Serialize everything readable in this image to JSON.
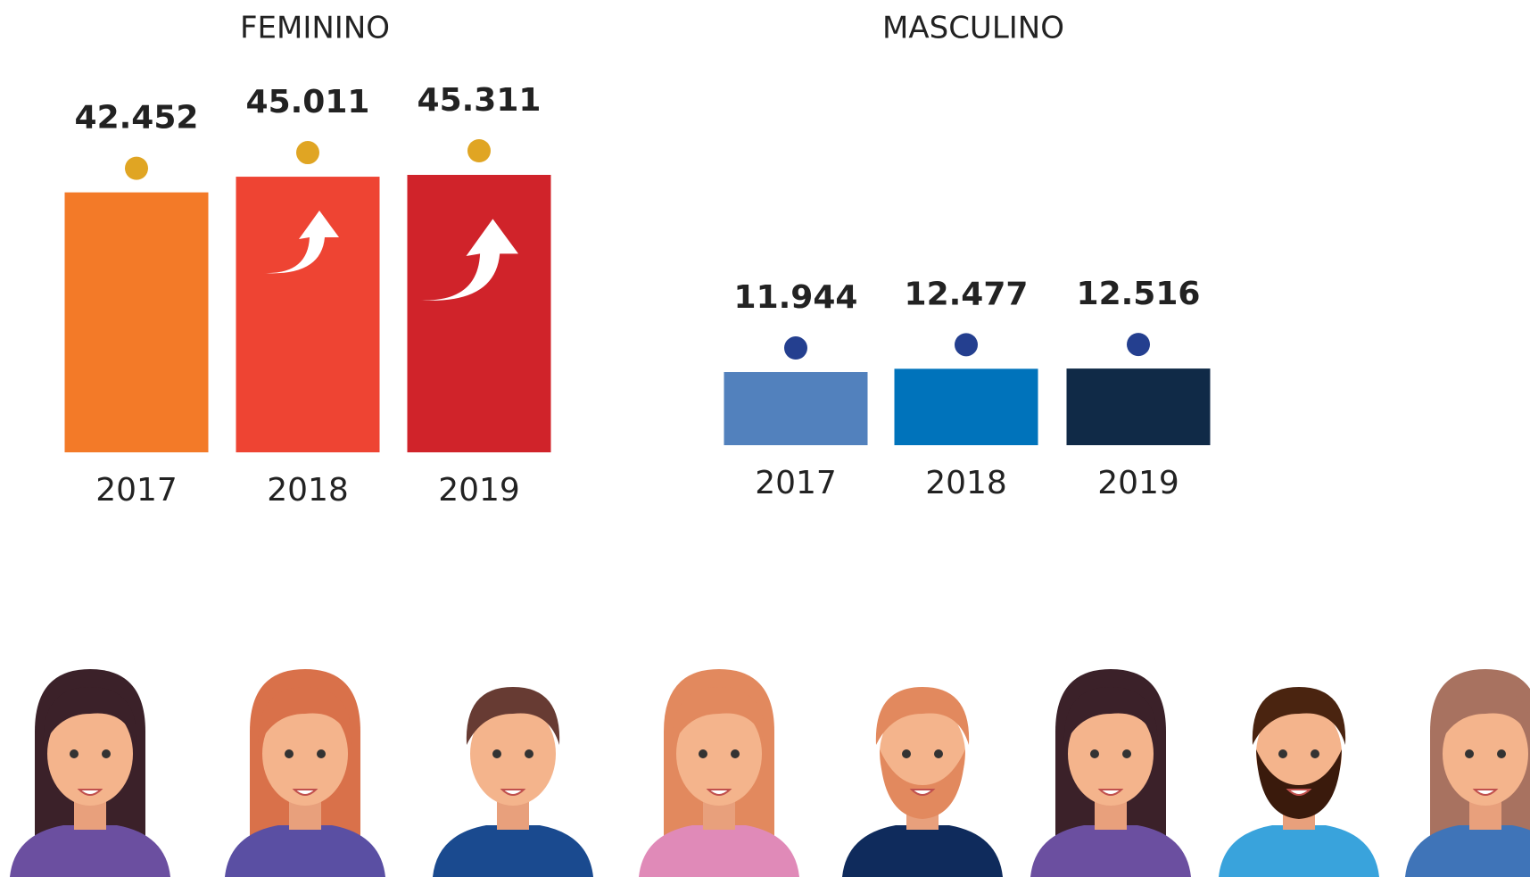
{
  "chart_data": [
    {
      "type": "bar",
      "title": "FEMININO",
      "categories": [
        "2017",
        "2018",
        "2019"
      ],
      "values": [
        42452,
        45011,
        45311
      ],
      "value_labels": [
        "42.452",
        "45.011",
        "45.311"
      ],
      "colors": [
        "#f37a28",
        "#ee4433",
        "#d0232a"
      ],
      "marker_color": "#e0a523"
    },
    {
      "type": "bar",
      "title": "MASCULINO",
      "categories": [
        "2017",
        "2018",
        "2019"
      ],
      "values": [
        11944,
        12477,
        12516
      ],
      "value_labels": [
        "11.944",
        "12.477",
        "12.516"
      ],
      "colors": [
        "#5281bd",
        "#0073bb",
        "#102a47"
      ],
      "marker_color": "#243f8f"
    }
  ]
}
